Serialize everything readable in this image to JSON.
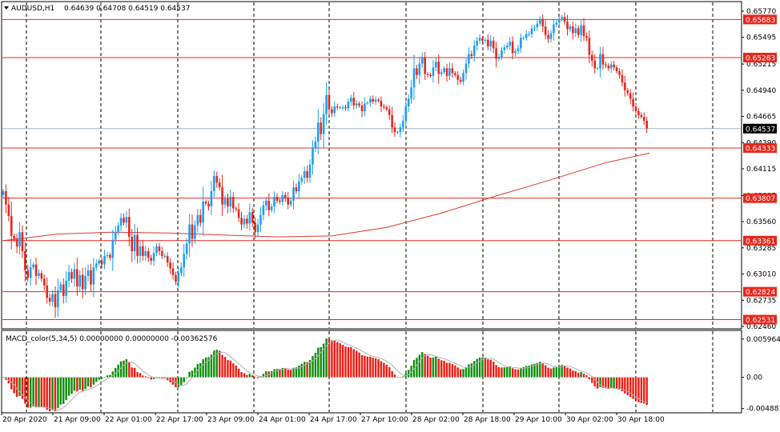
{
  "main_header": {
    "symbol": "AUDUSD,H1",
    "ohlc": "0.64639 0.64708 0.64519 0.64537"
  },
  "macd_header": {
    "label": "MACD_color(5,34,5) 0.00000000 0.00000000 -0.00362576"
  },
  "colors": {
    "bull": "#1e9ef0",
    "bear": "#e8271c",
    "level": "#e8271c",
    "ma": "#d93a2f",
    "hist_up": "#0a8f0a",
    "hist_down": "#ee1b12",
    "signal": "#b0b0b0",
    "current_price_line": "#9fb3c6"
  },
  "chart_data": [
    {
      "type": "candlestick",
      "name": "price",
      "ylim": [
        0.6246,
        0.6577
      ],
      "ytick_labels": [
        "0.65770",
        "0.65495",
        "0.65215",
        "0.64940",
        "0.64665",
        "0.64390",
        "0.64115",
        "0.63835",
        "0.63560",
        "0.63285",
        "0.63010",
        "0.62735",
        "0.62460"
      ],
      "ytick_values": [
        0.6577,
        0.65495,
        0.65215,
        0.6494,
        0.64665,
        0.6439,
        0.64115,
        0.63835,
        0.6356,
        0.63285,
        0.6301,
        0.62735,
        0.6246
      ],
      "xtick_labels": [
        "20 Apr 2020",
        "21 Apr 09:00",
        "22 Apr 01:00",
        "22 Apr 17:00",
        "23 Apr 09:00",
        "24 Apr 01:00",
        "24 Apr 17:00",
        "27 Apr 10:00",
        "28 Apr 02:00",
        "28 Apr 18:00",
        "29 Apr 10:00",
        "30 Apr 02:00",
        "30 Apr 18:00"
      ],
      "horizontal_levels": [
        "0.65683",
        "0.65283",
        "0.64333",
        "0.63807",
        "0.63361",
        "0.62824",
        "0.62531"
      ],
      "current_price": "0.64537",
      "close_series": [
        0.6388,
        0.6374,
        0.6362,
        0.6341,
        0.6338,
        0.633,
        0.6345,
        0.6325,
        0.6305,
        0.6297,
        0.6308,
        0.6311,
        0.6299,
        0.6302,
        0.6296,
        0.6289,
        0.6276,
        0.6272,
        0.628,
        0.6266,
        0.6284,
        0.629,
        0.6278,
        0.6294,
        0.6303,
        0.6296,
        0.6306,
        0.6288,
        0.63,
        0.6285,
        0.6299,
        0.6305,
        0.629,
        0.6308,
        0.6312,
        0.6315,
        0.6311,
        0.632,
        0.6321,
        0.6318,
        0.6337,
        0.6345,
        0.6352,
        0.636,
        0.6355,
        0.6361,
        0.634,
        0.6325,
        0.6342,
        0.632,
        0.633,
        0.632,
        0.6325,
        0.6318,
        0.6315,
        0.6323,
        0.633,
        0.6325,
        0.632,
        0.632,
        0.6313,
        0.6307,
        0.63,
        0.6293,
        0.6302,
        0.6308,
        0.6322,
        0.6333,
        0.6353,
        0.6338,
        0.6352,
        0.6363,
        0.6355,
        0.6377,
        0.6375,
        0.6372,
        0.6388,
        0.6404,
        0.6397,
        0.6392,
        0.6374,
        0.638,
        0.6372,
        0.6382,
        0.637,
        0.6369,
        0.636,
        0.6353,
        0.6359,
        0.6354,
        0.6366,
        0.6355,
        0.6345,
        0.6353,
        0.6363,
        0.6373,
        0.6378,
        0.6368,
        0.6372,
        0.6382,
        0.6378,
        0.6377,
        0.6384,
        0.6381,
        0.6374,
        0.6378,
        0.6392,
        0.6388,
        0.6398,
        0.6402,
        0.6409,
        0.6402,
        0.6416,
        0.6433,
        0.644,
        0.646,
        0.6448,
        0.6469,
        0.6489,
        0.6474,
        0.647,
        0.6477,
        0.6476,
        0.6476,
        0.6476,
        0.6475,
        0.6482,
        0.6486,
        0.6478,
        0.648,
        0.6478,
        0.6472,
        0.648,
        0.6481,
        0.6485,
        0.6482,
        0.6484,
        0.6483,
        0.6477,
        0.6476,
        0.6474,
        0.6468,
        0.6455,
        0.645,
        0.645,
        0.6455,
        0.6462,
        0.6477,
        0.6485,
        0.6497,
        0.6517,
        0.651,
        0.6522,
        0.6528,
        0.6511,
        0.651,
        0.6509,
        0.6518,
        0.6524,
        0.6511,
        0.6513,
        0.6517,
        0.6509,
        0.6517,
        0.6512,
        0.651,
        0.6505,
        0.6503,
        0.6512,
        0.6522,
        0.6532,
        0.653,
        0.6541,
        0.6546,
        0.6549,
        0.6546,
        0.6547,
        0.654,
        0.6546,
        0.6538,
        0.6527,
        0.6529,
        0.6536,
        0.6539,
        0.6541,
        0.6545,
        0.6533,
        0.6535,
        0.6538,
        0.6549,
        0.6549,
        0.6553,
        0.6553,
        0.6559,
        0.656,
        0.6564,
        0.6569,
        0.6561,
        0.6552,
        0.6548,
        0.6554,
        0.6563,
        0.6565,
        0.6569,
        0.6571,
        0.6566,
        0.6558,
        0.6561,
        0.6554,
        0.6559,
        0.6552,
        0.6562,
        0.6551,
        0.6549,
        0.6531,
        0.6525,
        0.6517,
        0.6517,
        0.6532,
        0.6521,
        0.652,
        0.6517,
        0.6521,
        0.6518,
        0.6514,
        0.651,
        0.6502,
        0.6494,
        0.6491,
        0.6485,
        0.6477,
        0.6472,
        0.6468,
        0.6466,
        0.6462,
        0.6454
      ]
    },
    {
      "type": "line",
      "name": "moving average",
      "points_x_index": [
        0,
        20,
        40,
        60,
        80,
        100,
        120,
        140,
        160,
        180,
        200,
        220,
        236
      ],
      "values": [
        0.6336,
        0.6343,
        0.6345,
        0.6344,
        0.6342,
        0.634,
        0.6341,
        0.635,
        0.6365,
        0.6383,
        0.64,
        0.6418,
        0.6428
      ]
    },
    {
      "type": "bar",
      "name": "MACD histogram",
      "ylim": [
        -0.0048,
        0.0062
      ],
      "ytick_labels": [
        "0.005964",
        "0.00",
        "-0.004883"
      ],
      "ytick_values": [
        0.005964,
        0.0,
        -0.004883
      ]
    }
  ]
}
